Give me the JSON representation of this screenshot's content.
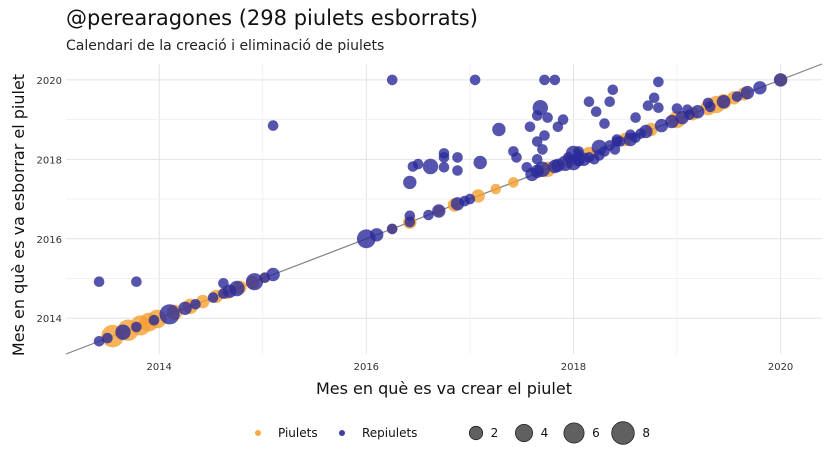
{
  "chart_data": {
    "type": "scatter",
    "title": "@perearagones (298 piulets esborrats)",
    "subtitle": "Calendari de la creació i eliminació de piulets",
    "xlabel": "Mes en què es va crear el piulet",
    "ylabel": "Mes en què es va esborrar el piulet",
    "xlim": [
      2013.1,
      2020.4
    ],
    "ylim": [
      2013.1,
      2020.4
    ],
    "xticks": [
      "2014",
      "2016",
      "2018",
      "2020"
    ],
    "yticks": [
      "2014",
      "2016",
      "2018",
      "2020"
    ],
    "grid": true,
    "reference_line": "y = x",
    "legend_position": "bottom",
    "colors": {
      "Piulets": "#f5a031",
      "Repiulets": "#2a2a9a"
    },
    "size_legend": [
      2,
      4,
      6,
      8
    ],
    "series": [
      {
        "name": "Piulets",
        "points": [
          [
            2013.55,
            2013.55,
            8
          ],
          [
            2013.7,
            2013.7,
            7
          ],
          [
            2013.82,
            2013.82,
            6
          ],
          [
            2013.9,
            2013.9,
            5
          ],
          [
            2013.98,
            2013.98,
            5
          ],
          [
            2014.15,
            2014.15,
            3
          ],
          [
            2014.3,
            2014.3,
            3
          ],
          [
            2014.42,
            2014.42,
            2
          ],
          [
            2014.55,
            2014.55,
            2
          ],
          [
            2014.65,
            2014.65,
            2
          ],
          [
            2014.78,
            2014.78,
            2
          ],
          [
            2014.9,
            2014.9,
            2
          ],
          [
            2015.02,
            2015.02,
            1
          ],
          [
            2016.25,
            2016.25,
            1
          ],
          [
            2016.42,
            2016.42,
            2
          ],
          [
            2016.7,
            2016.7,
            1
          ],
          [
            2016.85,
            2016.85,
            2
          ],
          [
            2017.08,
            2017.08,
            2
          ],
          [
            2017.25,
            2017.25,
            1
          ],
          [
            2017.42,
            2017.42,
            1
          ],
          [
            2017.75,
            2017.75,
            3
          ],
          [
            2017.95,
            2017.95,
            2
          ],
          [
            2018.15,
            2018.15,
            2
          ],
          [
            2018.5,
            2018.5,
            2
          ],
          [
            2018.75,
            2018.75,
            2
          ],
          [
            2019.0,
            2019.0,
            4
          ],
          [
            2019.15,
            2019.15,
            2
          ],
          [
            2019.3,
            2019.3,
            3
          ],
          [
            2019.38,
            2019.38,
            4
          ],
          [
            2019.45,
            2019.45,
            3
          ],
          [
            2019.55,
            2019.55,
            2
          ],
          [
            2019.65,
            2019.65,
            2
          ],
          [
            2020.0,
            2020.0,
            2
          ]
        ]
      },
      {
        "name": "Repiulets",
        "points": [
          [
            2013.42,
            2013.42,
            1
          ],
          [
            2013.5,
            2013.5,
            1
          ],
          [
            2013.65,
            2013.65,
            3
          ],
          [
            2013.78,
            2013.78,
            1
          ],
          [
            2013.95,
            2013.95,
            1
          ],
          [
            2014.1,
            2014.1,
            6
          ],
          [
            2014.25,
            2014.25,
            2
          ],
          [
            2014.35,
            2014.35,
            1
          ],
          [
            2014.52,
            2014.52,
            1
          ],
          [
            2014.62,
            2014.62,
            1
          ],
          [
            2014.75,
            2014.75,
            3
          ],
          [
            2014.92,
            2014.92,
            4
          ],
          [
            2015.1,
            2015.1,
            2
          ],
          [
            2015.02,
            2015.02,
            1
          ],
          [
            2014.68,
            2014.68,
            2
          ],
          [
            2013.42,
            2014.92,
            1
          ],
          [
            2013.78,
            2014.92,
            1
          ],
          [
            2014.62,
            2014.88,
            1
          ],
          [
            2015.1,
            2018.85,
            1
          ],
          [
            2016.0,
            2016.0,
            5
          ],
          [
            2016.1,
            2016.1,
            2
          ],
          [
            2016.25,
            2016.25,
            1
          ],
          [
            2016.42,
            2016.42,
            1
          ],
          [
            2016.6,
            2016.6,
            1
          ],
          [
            2016.7,
            2016.7,
            2
          ],
          [
            2016.88,
            2016.88,
            2
          ],
          [
            2016.95,
            2016.95,
            1
          ],
          [
            2017.0,
            2017.0,
            1
          ],
          [
            2016.42,
            2016.58,
            1
          ],
          [
            2016.42,
            2017.42,
            2
          ],
          [
            2016.45,
            2017.82,
            1
          ],
          [
            2016.5,
            2017.88,
            1
          ],
          [
            2016.62,
            2017.82,
            3
          ],
          [
            2016.75,
            2017.8,
            1
          ],
          [
            2016.75,
            2018.05,
            1
          ],
          [
            2016.75,
            2018.15,
            1
          ],
          [
            2016.88,
            2017.72,
            1
          ],
          [
            2016.88,
            2018.05,
            1
          ],
          [
            2017.1,
            2017.92,
            2
          ],
          [
            2017.28,
            2018.75,
            2
          ],
          [
            2017.42,
            2018.2,
            1
          ],
          [
            2017.45,
            2018.05,
            1
          ],
          [
            2017.55,
            2017.8,
            1
          ],
          [
            2017.6,
            2017.62,
            2
          ],
          [
            2017.65,
            2017.7,
            2
          ],
          [
            2017.7,
            2017.75,
            3
          ],
          [
            2017.65,
            2018.0,
            1
          ],
          [
            2017.7,
            2018.25,
            1
          ],
          [
            2017.65,
            2018.45,
            1
          ],
          [
            2017.72,
            2018.6,
            1
          ],
          [
            2017.75,
            2019.05,
            1
          ],
          [
            2017.68,
            2019.3,
            3
          ],
          [
            2017.72,
            2020.0,
            1
          ],
          [
            2017.82,
            2020.0,
            1
          ],
          [
            2017.85,
            2018.82,
            1
          ],
          [
            2017.9,
            2019.0,
            1
          ],
          [
            2017.82,
            2017.82,
            2
          ],
          [
            2017.92,
            2017.9,
            3
          ],
          [
            2018.0,
            2017.92,
            3
          ],
          [
            2018.05,
            2018.0,
            2
          ],
          [
            2017.95,
            2018.05,
            1
          ],
          [
            2018.1,
            2018.0,
            2
          ],
          [
            2018.05,
            2018.2,
            1
          ],
          [
            2018.05,
            2017.95,
            1
          ],
          [
            2017.85,
            2017.85,
            2
          ],
          [
            2018.0,
            2018.15,
            3
          ],
          [
            2018.15,
            2018.05,
            1
          ],
          [
            2018.2,
            2018.0,
            1
          ],
          [
            2018.25,
            2018.1,
            1
          ],
          [
            2018.35,
            2018.35,
            1
          ],
          [
            2018.45,
            2018.45,
            1
          ],
          [
            2018.55,
            2018.5,
            2
          ],
          [
            2018.7,
            2018.7,
            2
          ],
          [
            2018.85,
            2018.85,
            2
          ],
          [
            2018.95,
            2018.95,
            2
          ],
          [
            2019.05,
            2019.05,
            2
          ],
          [
            2019.12,
            2019.12,
            1
          ],
          [
            2019.2,
            2019.2,
            2
          ],
          [
            2019.32,
            2019.32,
            1
          ],
          [
            2019.45,
            2019.45,
            2
          ],
          [
            2019.58,
            2019.58,
            1
          ],
          [
            2019.68,
            2019.68,
            2
          ],
          [
            2019.8,
            2019.8,
            2
          ],
          [
            2020.0,
            2020.0,
            2
          ],
          [
            2018.42,
            2018.45,
            1
          ],
          [
            2018.6,
            2018.55,
            1
          ],
          [
            2018.65,
            2018.65,
            1
          ],
          [
            2018.4,
            2018.25,
            1
          ],
          [
            2018.25,
            2018.3,
            3
          ],
          [
            2018.3,
            2018.2,
            1
          ],
          [
            2018.05,
            2018.12,
            1
          ],
          [
            2016.25,
            2020.0,
            1
          ],
          [
            2017.05,
            2020.0,
            1
          ],
          [
            2018.6,
            2019.05,
            1
          ],
          [
            2018.72,
            2019.35,
            1
          ],
          [
            2018.78,
            2019.55,
            1
          ],
          [
            2018.82,
            2019.95,
            1
          ],
          [
            2018.15,
            2019.45,
            1
          ],
          [
            2018.22,
            2019.2,
            1
          ],
          [
            2018.35,
            2019.45,
            1
          ],
          [
            2018.38,
            2019.75,
            1
          ],
          [
            2018.3,
            2018.9,
            1
          ],
          [
            2018.42,
            2018.5,
            1
          ],
          [
            2018.55,
            2018.62,
            1
          ],
          [
            2019.0,
            2019.28,
            1
          ],
          [
            2019.1,
            2019.25,
            1
          ],
          [
            2019.3,
            2019.42,
            1
          ],
          [
            2018.82,
            2019.3,
            1
          ],
          [
            2017.58,
            2018.82,
            1
          ],
          [
            2017.65,
            2019.1,
            1
          ]
        ]
      }
    ]
  }
}
